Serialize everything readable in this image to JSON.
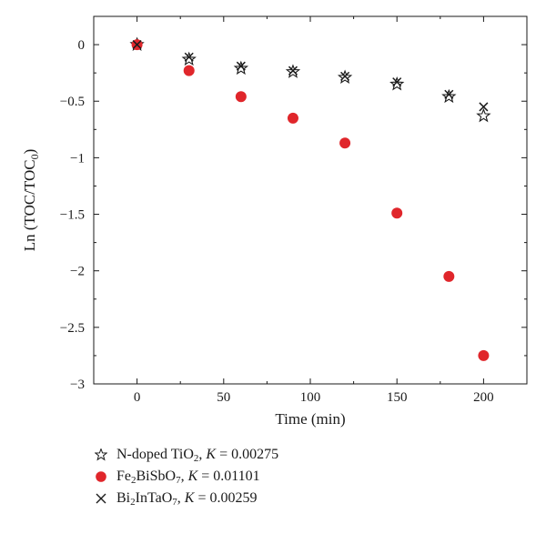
{
  "chart_data": {
    "type": "scatter",
    "xlabel": "Time (min)",
    "ylabel_main": "Ln (TOC/TOC",
    "ylabel_sub": "0",
    "ylabel_end": ")",
    "xlim": [
      -25,
      225
    ],
    "ylim": [
      -3,
      0.25
    ],
    "xticks": [
      0,
      50,
      100,
      150,
      200
    ],
    "xtick_labels": [
      "0",
      "50",
      "100",
      "150",
      "200"
    ],
    "yticks": [
      0,
      -0.5,
      -1,
      -1.5,
      -2,
      -2.5,
      -3
    ],
    "ytick_labels": [
      "0",
      "−0.5",
      "−1",
      "−1.5",
      "−2",
      "−2.5",
      "−3"
    ],
    "grid": false,
    "legend_position": "below",
    "series": [
      {
        "marker": "star",
        "color": "#1a1a1a",
        "x": [
          0,
          30,
          60,
          90,
          120,
          150,
          180,
          200
        ],
        "y": [
          0,
          -0.13,
          -0.21,
          -0.24,
          -0.29,
          -0.35,
          -0.46,
          -0.63
        ],
        "legend": {
          "formula_parts": [
            [
              "N-doped TiO",
              ""
            ],
            [
              "2",
              "sub"
            ],
            [
              ", ",
              ""
            ],
            [
              "K",
              "i"
            ],
            [
              " = 0.00275",
              ""
            ]
          ]
        }
      },
      {
        "marker": "circle",
        "color": "#e0262b",
        "x": [
          0,
          30,
          60,
          90,
          120,
          150,
          180,
          200
        ],
        "y": [
          0,
          -0.23,
          -0.46,
          -0.65,
          -0.87,
          -1.49,
          -2.05,
          -2.75
        ],
        "legend": {
          "formula_parts": [
            [
              "Fe",
              ""
            ],
            [
              "2",
              "sub"
            ],
            [
              "BiSbO",
              ""
            ],
            [
              "7",
              "sub"
            ],
            [
              ", ",
              ""
            ],
            [
              "K",
              "i"
            ],
            [
              " = 0.01101",
              ""
            ]
          ]
        }
      },
      {
        "marker": "x",
        "color": "#1a1a1a",
        "x": [
          0,
          30,
          60,
          90,
          120,
          150,
          180,
          200
        ],
        "y": [
          0,
          -0.11,
          -0.19,
          -0.23,
          -0.28,
          -0.33,
          -0.44,
          -0.55
        ],
        "legend": {
          "formula_parts": [
            [
              "Bi",
              ""
            ],
            [
              "2",
              "sub"
            ],
            [
              "InTaO",
              ""
            ],
            [
              "7",
              "sub"
            ],
            [
              ", ",
              ""
            ],
            [
              "K",
              "i"
            ],
            [
              " = 0.00259",
              ""
            ]
          ]
        }
      }
    ]
  }
}
